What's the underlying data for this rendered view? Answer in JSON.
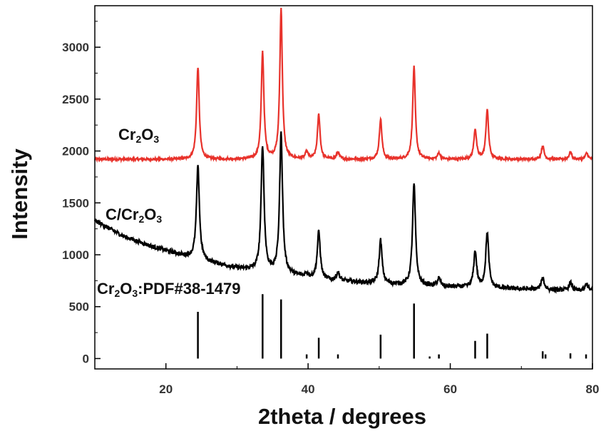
{
  "chart_data": {
    "type": "line",
    "xlabel": "2theta / degrees",
    "ylabel": "Intensity",
    "xlim": [
      10,
      80
    ],
    "ylim": [
      -100,
      3400
    ],
    "xticks": [
      20,
      40,
      60,
      80
    ],
    "yticks": [
      0,
      500,
      1000,
      1500,
      2000,
      2500,
      3000
    ],
    "grid": false,
    "series": [
      {
        "name": "Cr2O3",
        "color": "#e8322b",
        "baseline": 1920,
        "peaks": [
          {
            "x": 24.5,
            "y": 2810
          },
          {
            "x": 33.6,
            "y": 2950
          },
          {
            "x": 36.2,
            "y": 3370
          },
          {
            "x": 39.8,
            "y": 1990
          },
          {
            "x": 41.5,
            "y": 2350
          },
          {
            "x": 44.2,
            "y": 1990
          },
          {
            "x": 50.2,
            "y": 2310
          },
          {
            "x": 54.9,
            "y": 2810
          },
          {
            "x": 58.4,
            "y": 1980
          },
          {
            "x": 63.5,
            "y": 2210
          },
          {
            "x": 65.2,
            "y": 2400
          },
          {
            "x": 73.0,
            "y": 2050
          },
          {
            "x": 76.9,
            "y": 1990
          },
          {
            "x": 79.2,
            "y": 1980
          }
        ]
      },
      {
        "name": "C/Cr2O3",
        "color": "#000000",
        "background": [
          {
            "x": 10,
            "y": 1330
          },
          {
            "x": 14,
            "y": 1180
          },
          {
            "x": 18,
            "y": 1080
          },
          {
            "x": 22,
            "y": 1000
          },
          {
            "x": 26,
            "y": 930
          },
          {
            "x": 30,
            "y": 870
          },
          {
            "x": 36,
            "y": 820
          },
          {
            "x": 42,
            "y": 760
          },
          {
            "x": 50,
            "y": 720
          },
          {
            "x": 60,
            "y": 690
          },
          {
            "x": 70,
            "y": 670
          },
          {
            "x": 80,
            "y": 650
          }
        ],
        "peaks": [
          {
            "x": 24.5,
            "y": 1850
          },
          {
            "x": 33.6,
            "y": 2050
          },
          {
            "x": 36.2,
            "y": 2170
          },
          {
            "x": 39.8,
            "y": 820
          },
          {
            "x": 41.5,
            "y": 1220
          },
          {
            "x": 44.2,
            "y": 830
          },
          {
            "x": 50.2,
            "y": 1140
          },
          {
            "x": 54.9,
            "y": 1680
          },
          {
            "x": 58.4,
            "y": 770
          },
          {
            "x": 63.5,
            "y": 1030
          },
          {
            "x": 65.2,
            "y": 1210
          },
          {
            "x": 73.0,
            "y": 780
          },
          {
            "x": 76.9,
            "y": 730
          },
          {
            "x": 79.2,
            "y": 720
          }
        ]
      },
      {
        "name": "Cr2O3:PDF#38-1479",
        "color": "#000000",
        "type": "stick",
        "sticks": [
          {
            "x": 24.5,
            "y": 450
          },
          {
            "x": 33.6,
            "y": 620
          },
          {
            "x": 36.2,
            "y": 570
          },
          {
            "x": 39.8,
            "y": 40
          },
          {
            "x": 41.5,
            "y": 200
          },
          {
            "x": 44.2,
            "y": 40
          },
          {
            "x": 50.2,
            "y": 230
          },
          {
            "x": 54.9,
            "y": 530
          },
          {
            "x": 57.1,
            "y": 20
          },
          {
            "x": 58.4,
            "y": 40
          },
          {
            "x": 63.5,
            "y": 170
          },
          {
            "x": 65.2,
            "y": 240
          },
          {
            "x": 73.0,
            "y": 70
          },
          {
            "x": 73.4,
            "y": 40
          },
          {
            "x": 76.9,
            "y": 50
          },
          {
            "x": 79.1,
            "y": 40
          }
        ]
      }
    ],
    "annotations": [
      {
        "series": "Cr2O3",
        "main": "Cr",
        "sub1": "2",
        "mid": "O",
        "sub2": "3",
        "tail": ""
      },
      {
        "series": "C/Cr2O3",
        "main": "C/Cr",
        "sub1": "2",
        "mid": "O",
        "sub2": "3",
        "tail": ""
      },
      {
        "series": "Cr2O3:PDF#38-1479",
        "main": "Cr",
        "sub1": "2",
        "mid": "O",
        "sub2": "3",
        "tail": ":PDF#38-1479"
      }
    ]
  }
}
